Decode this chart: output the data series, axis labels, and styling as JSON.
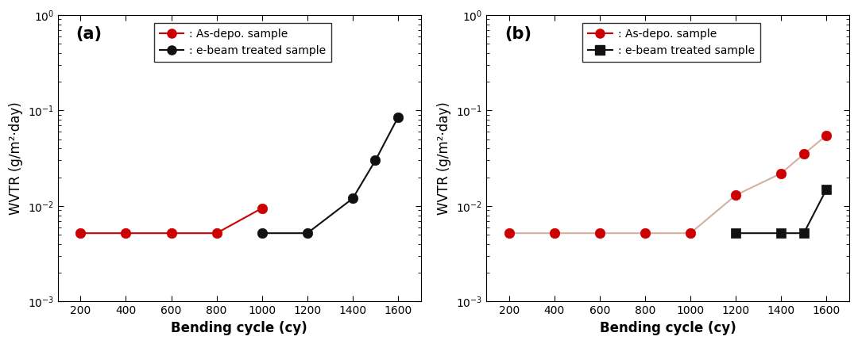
{
  "panel_a": {
    "label": "(a)",
    "red": {
      "x": [
        200,
        400,
        600,
        800,
        1000
      ],
      "y": [
        0.0052,
        0.0052,
        0.0052,
        0.0052,
        0.0095
      ]
    },
    "black": {
      "x": [
        1000,
        1200,
        1400,
        1500,
        1600
      ],
      "y": [
        0.0052,
        0.0052,
        0.012,
        0.03,
        0.085
      ]
    }
  },
  "panel_b": {
    "label": "(b)",
    "red": {
      "x": [
        200,
        400,
        600,
        800,
        1000,
        1200,
        1400,
        1500,
        1600
      ],
      "y": [
        0.0052,
        0.0052,
        0.0052,
        0.0052,
        0.0052,
        0.013,
        0.022,
        0.035,
        0.055
      ]
    },
    "black": {
      "x": [
        1200,
        1400,
        1500,
        1600
      ],
      "y": [
        0.0052,
        0.0052,
        0.0052,
        0.015
      ]
    }
  },
  "ylabel": "WVTR (g/m²·day)",
  "xlabel": "Bending cycle (cy)",
  "ylim": [
    0.001,
    1.0
  ],
  "xlim": [
    100,
    1700
  ],
  "xticks": [
    200,
    400,
    600,
    800,
    1000,
    1200,
    1400,
    1600
  ],
  "legend_red": ": As-depo. sample",
  "legend_black": ": e-beam treated sample",
  "red_color": "#cc0000",
  "black_color": "#111111",
  "line_color_red_b": "#d4b0a0",
  "marker_size": 9,
  "linewidth": 1.5,
  "label_fontsize": 12,
  "tick_fontsize": 10,
  "legend_fontsize": 10,
  "panel_label_fontsize": 15
}
